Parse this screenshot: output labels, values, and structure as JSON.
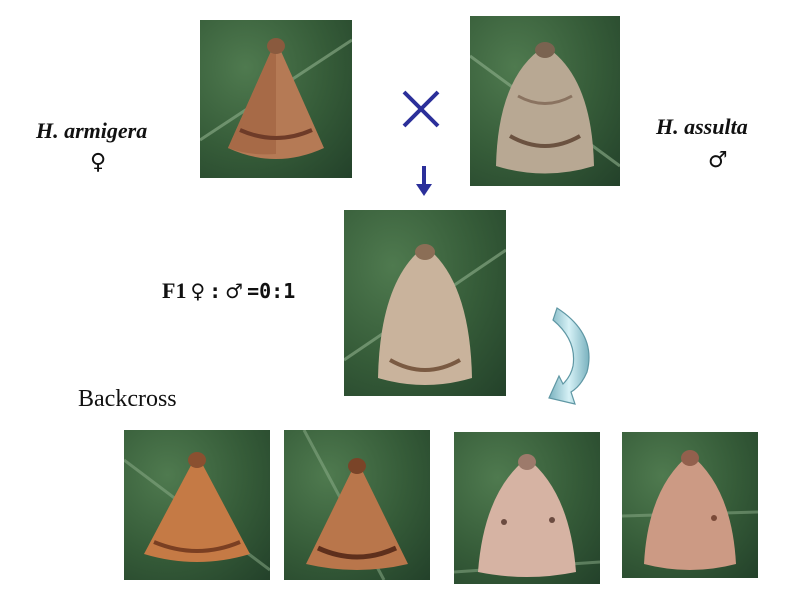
{
  "parents": {
    "female": {
      "name": "H. armigera",
      "symbol": "♀"
    },
    "male": {
      "name": "H. assulta",
      "symbol": "♂"
    }
  },
  "f1": {
    "generation": "F1",
    "female_symbol": "♀",
    "separator": ":",
    "male_symbol": "♂",
    "ratio": "=0:1"
  },
  "backcross": {
    "label": "Backcross"
  },
  "colors": {
    "arrow": "#2b2f9a",
    "curved_arrow_light": "#d6f1f6",
    "curved_arrow_dark": "#7ab2bf",
    "leaf": "#355b38"
  }
}
